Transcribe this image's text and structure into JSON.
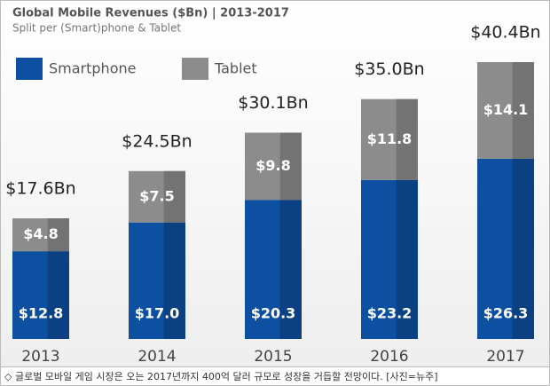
{
  "chart_data": {
    "type": "stacked-bar",
    "title": "Global Mobile Revenues ($Bn) | 2013-2017",
    "subtitle": "Split per (Smart)phone & Tablet",
    "categories": [
      "2013",
      "2014",
      "2015",
      "2016",
      "2017"
    ],
    "series": [
      {
        "name": "Smartphone",
        "color": "#0d4fa0",
        "values": [
          12.8,
          17.0,
          20.3,
          23.2,
          26.3
        ],
        "value_labels": [
          "$12.8",
          "$17.0",
          "$20.3",
          "$23.2",
          "$26.3"
        ]
      },
      {
        "name": "Tablet",
        "color": "#8c8c8c",
        "values": [
          4.8,
          7.5,
          9.8,
          11.8,
          14.1
        ],
        "value_labels": [
          "$4.8",
          "$7.5",
          "$9.8",
          "$11.8",
          "$14.1"
        ]
      }
    ],
    "totals": {
      "values": [
        17.6,
        24.5,
        30.1,
        35.0,
        40.4
      ],
      "value_labels": [
        "$17.6Bn",
        "$24.5Bn",
        "$30.1Bn",
        "$35.0Bn",
        "$40.4Bn"
      ]
    },
    "legend": "top-left"
  },
  "caption": "◇ 글로벌 모바일 게임 시장은 오는 2017년까지 400억 달러 규모로 성장을 거듭할 전망이다. [사진=뉴주]"
}
